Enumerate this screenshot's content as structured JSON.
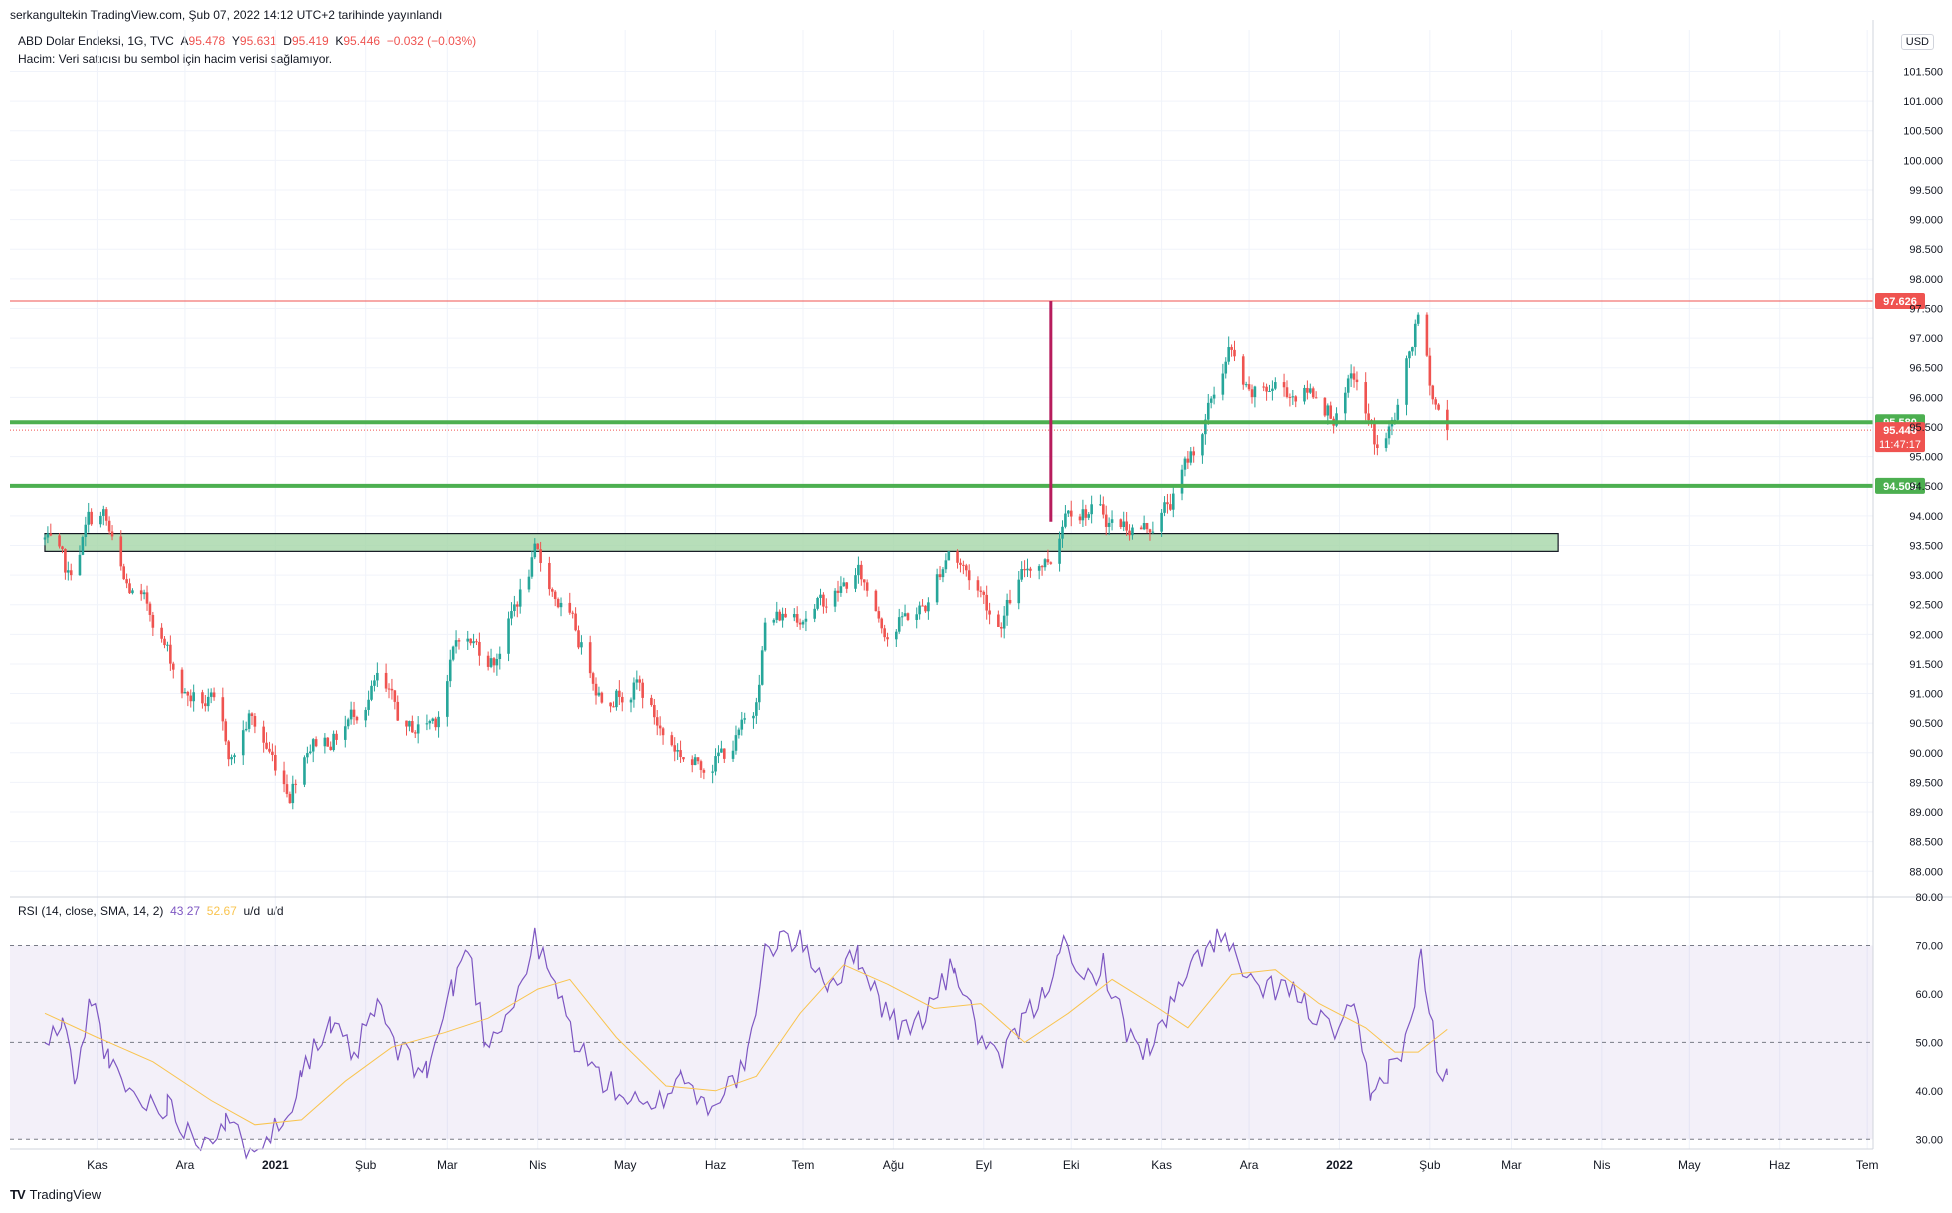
{
  "header": {
    "published": "serkangultekin TradingView.com, Şub 07, 2022 14:12 UTC+2 tarihinde yayınlandı",
    "symbol": "ABD Dolar Endeksi, 1G, TVC",
    "open_label": "A",
    "open": "95.478",
    "high_label": "Y",
    "high": "95.631",
    "low_label": "D",
    "low": "95.419",
    "close_label": "K",
    "close": "95.446",
    "change": "−0.032 (−0.03%)",
    "volume_note": "Hacim: Veri satıcısı bu sembol için hacim verisi sağlamıyor.",
    "currency": "USD"
  },
  "rsi_legend": {
    "name": "RSI (14, close, SMA, 14, 2)",
    "rsi": "43.27",
    "sma": "52.67",
    "extra1": "u/d",
    "extra2": "u/d"
  },
  "brand": {
    "name": "TradingView"
  },
  "colors": {
    "up": "#26a69a",
    "down": "#ef5350",
    "hline_green": "#4caf50",
    "hline_red": "#ef5350",
    "vline": "#b71c5c",
    "zone": "#a5d6a7",
    "rsi": "#7e57c2",
    "rsi_sma": "#f9c44f"
  },
  "chart_data": [
    {
      "type": "candlestick",
      "title": "ABD Dolar Endeksi, 1G, TVC",
      "ylim": [
        87.6,
        102.2
      ],
      "y_ticks": [
        "88.000",
        "88.500",
        "89.000",
        "89.500",
        "90.000",
        "90.500",
        "91.000",
        "91.500",
        "92.000",
        "92.500",
        "93.000",
        "93.500",
        "94.000",
        "94.500",
        "95.000",
        "95.500",
        "96.000",
        "96.500",
        "97.000",
        "97.500",
        "98.000",
        "98.500",
        "99.000",
        "99.500",
        "100.000",
        "100.500",
        "101.000",
        "101.500"
      ],
      "x_ticks": [
        "Kas",
        "Ara",
        "2021",
        "Şub",
        "Mar",
        "Nis",
        "May",
        "Haz",
        "Tem",
        "Ağu",
        "Eyl",
        "Eki",
        "Kas",
        "Ara",
        "2022",
        "Şub",
        "Mar",
        "Nis",
        "May",
        "Haz",
        "Tem"
      ],
      "price_path": [
        [
          "2020-10-14",
          93.6
        ],
        [
          "2020-10-22",
          92.9
        ],
        [
          "2020-10-29",
          93.9
        ],
        [
          "2020-11-03",
          94.0
        ],
        [
          "2020-11-10",
          92.8
        ],
        [
          "2020-11-20",
          92.3
        ],
        [
          "2020-12-01",
          91.0
        ],
        [
          "2020-12-10",
          90.8
        ],
        [
          "2020-12-17",
          89.9
        ],
        [
          "2020-12-23",
          90.6
        ],
        [
          "2021-01-06",
          89.4
        ],
        [
          "2021-01-12",
          90.2
        ],
        [
          "2021-01-22",
          90.3
        ],
        [
          "2021-02-05",
          91.2
        ],
        [
          "2021-02-15",
          90.3
        ],
        [
          "2021-02-25",
          90.6
        ],
        [
          "2021-03-05",
          92.0
        ],
        [
          "2021-03-17",
          91.6
        ],
        [
          "2021-03-31",
          93.3
        ],
        [
          "2021-04-12",
          92.2
        ],
        [
          "2021-04-23",
          91.0
        ],
        [
          "2021-05-05",
          91.2
        ],
        [
          "2021-05-14",
          90.3
        ],
        [
          "2021-05-25",
          89.8
        ],
        [
          "2021-06-04",
          90.0
        ],
        [
          "2021-06-14",
          90.6
        ],
        [
          "2021-06-18",
          92.2
        ],
        [
          "2021-06-30",
          92.4
        ],
        [
          "2021-07-07",
          92.5
        ],
        [
          "2021-07-20",
          93.0
        ],
        [
          "2021-07-30",
          92.1
        ],
        [
          "2021-08-13",
          92.5
        ],
        [
          "2021-08-20",
          93.5
        ],
        [
          "2021-08-31",
          92.7
        ],
        [
          "2021-09-06",
          92.2
        ],
        [
          "2021-09-17",
          93.2
        ],
        [
          "2021-09-24",
          93.3
        ],
        [
          "2021-09-30",
          94.3
        ],
        [
          "2021-10-08",
          94.1
        ],
        [
          "2021-10-15",
          93.9
        ],
        [
          "2021-10-27",
          93.8
        ],
        [
          "2021-11-05",
          94.3
        ],
        [
          "2021-11-16",
          95.6
        ],
        [
          "2021-11-24",
          96.8
        ],
        [
          "2021-12-01",
          95.9
        ],
        [
          "2021-12-10",
          96.2
        ],
        [
          "2021-12-16",
          96.1
        ],
        [
          "2021-12-24",
          96.1
        ],
        [
          "2021-12-31",
          95.7
        ],
        [
          "2022-01-06",
          96.3
        ],
        [
          "2022-01-14",
          95.1
        ],
        [
          "2022-01-20",
          95.6
        ],
        [
          "2022-01-28",
          97.3
        ],
        [
          "2022-02-02",
          96.0
        ],
        [
          "2022-02-07",
          95.446
        ]
      ],
      "horizontal_levels": [
        {
          "value": 97.626,
          "label": "97.626",
          "color": "red"
        },
        {
          "value": 95.58,
          "label": "95.580",
          "color": "green"
        },
        {
          "value": 94.505,
          "label": "94.505",
          "color": "green"
        }
      ],
      "last_price": {
        "value": "95.446",
        "countdown": "11:47:17"
      },
      "zone": {
        "from_date": "2020-10-14",
        "to_date": "2022-03-17",
        "low": 93.4,
        "high": 93.7
      },
      "vertical_line": {
        "date": "2021-09-24",
        "from": 93.9,
        "to": 97.626
      }
    },
    {
      "type": "line",
      "title": "RSI (14, close, SMA, 14, 2)",
      "ylim": [
        28,
        80
      ],
      "y_ticks": [
        "30.00",
        "40.00",
        "50.00",
        "60.00",
        "70.00",
        "80.00"
      ],
      "bands": [
        30,
        50,
        70
      ],
      "series": [
        {
          "name": "RSI",
          "values": [
            [
              "2020-10-14",
              49
            ],
            [
              "2020-10-20",
              54
            ],
            [
              "2020-10-25",
              42
            ],
            [
              "2020-10-30",
              60
            ],
            [
              "2020-11-05",
              45
            ],
            [
              "2020-11-15",
              38
            ],
            [
              "2020-11-25",
              37
            ],
            [
              "2020-12-05",
              30
            ],
            [
              "2020-12-15",
              33
            ],
            [
              "2020-12-22",
              29
            ],
            [
              "2021-01-04",
              33
            ],
            [
              "2021-01-10",
              45
            ],
            [
              "2021-01-20",
              53
            ],
            [
              "2021-01-28",
              47
            ],
            [
              "2021-02-05",
              58
            ],
            [
              "2021-02-12",
              48
            ],
            [
              "2021-02-22",
              44
            ],
            [
              "2021-03-03",
              62
            ],
            [
              "2021-03-08",
              70
            ],
            [
              "2021-03-14",
              50
            ],
            [
              "2021-03-24",
              58
            ],
            [
              "2021-03-31",
              71
            ],
            [
              "2021-04-08",
              60
            ],
            [
              "2021-04-14",
              50
            ],
            [
              "2021-04-22",
              43
            ],
            [
              "2021-05-03",
              38
            ],
            [
              "2021-05-10",
              35
            ],
            [
              "2021-05-20",
              44
            ],
            [
              "2021-05-28",
              37
            ],
            [
              "2021-06-04",
              40
            ],
            [
              "2021-06-12",
              46
            ],
            [
              "2021-06-18",
              68
            ],
            [
              "2021-06-23",
              72
            ],
            [
              "2021-07-01",
              70
            ],
            [
              "2021-07-10",
              62
            ],
            [
              "2021-07-20",
              68
            ],
            [
              "2021-07-28",
              58
            ],
            [
              "2021-08-04",
              52
            ],
            [
              "2021-08-12",
              56
            ],
            [
              "2021-08-22",
              66
            ],
            [
              "2021-08-30",
              52
            ],
            [
              "2021-09-06",
              45
            ],
            [
              "2021-09-14",
              54
            ],
            [
              "2021-09-22",
              60
            ],
            [
              "2021-09-27",
              71
            ],
            [
              "2021-10-04",
              62
            ],
            [
              "2021-10-12",
              66
            ],
            [
              "2021-10-20",
              52
            ],
            [
              "2021-10-28",
              48
            ],
            [
              "2021-11-04",
              57
            ],
            [
              "2021-11-12",
              66
            ],
            [
              "2021-11-20",
              72
            ],
            [
              "2021-11-26",
              68
            ],
            [
              "2021-12-03",
              60
            ],
            [
              "2021-12-12",
              62
            ],
            [
              "2021-12-20",
              58
            ],
            [
              "2021-12-29",
              52
            ],
            [
              "2022-01-06",
              56
            ],
            [
              "2022-01-12",
              38
            ],
            [
              "2022-01-18",
              45
            ],
            [
              "2022-01-24",
              50
            ],
            [
              "2022-01-29",
              68
            ],
            [
              "2022-02-02",
              52
            ],
            [
              "2022-02-04",
              42
            ],
            [
              "2022-02-07",
              43.27
            ]
          ]
        },
        {
          "name": "SMA",
          "values": [
            [
              "2020-10-14",
              56
            ],
            [
              "2020-11-01",
              51
            ],
            [
              "2020-11-20",
              46
            ],
            [
              "2020-12-10",
              38
            ],
            [
              "2020-12-25",
              33
            ],
            [
              "2021-01-10",
              34
            ],
            [
              "2021-01-25",
              42
            ],
            [
              "2021-02-10",
              49
            ],
            [
              "2021-02-28",
              52
            ],
            [
              "2021-03-15",
              55
            ],
            [
              "2021-04-01",
              61
            ],
            [
              "2021-04-12",
              63
            ],
            [
              "2021-04-28",
              51
            ],
            [
              "2021-05-15",
              41
            ],
            [
              "2021-06-01",
              40
            ],
            [
              "2021-06-15",
              43
            ],
            [
              "2021-06-30",
              56
            ],
            [
              "2021-07-15",
              66
            ],
            [
              "2021-07-30",
              62
            ],
            [
              "2021-08-15",
              57
            ],
            [
              "2021-08-31",
              58
            ],
            [
              "2021-09-15",
              50
            ],
            [
              "2021-09-30",
              56
            ],
            [
              "2021-10-15",
              63
            ],
            [
              "2021-10-31",
              57
            ],
            [
              "2021-11-10",
              53
            ],
            [
              "2021-11-25",
              64
            ],
            [
              "2021-12-10",
              65
            ],
            [
              "2021-12-25",
              58
            ],
            [
              "2022-01-10",
              53
            ],
            [
              "2022-01-20",
              48
            ],
            [
              "2022-01-28",
              48
            ],
            [
              "2022-02-07",
              52.67
            ]
          ]
        }
      ]
    }
  ]
}
